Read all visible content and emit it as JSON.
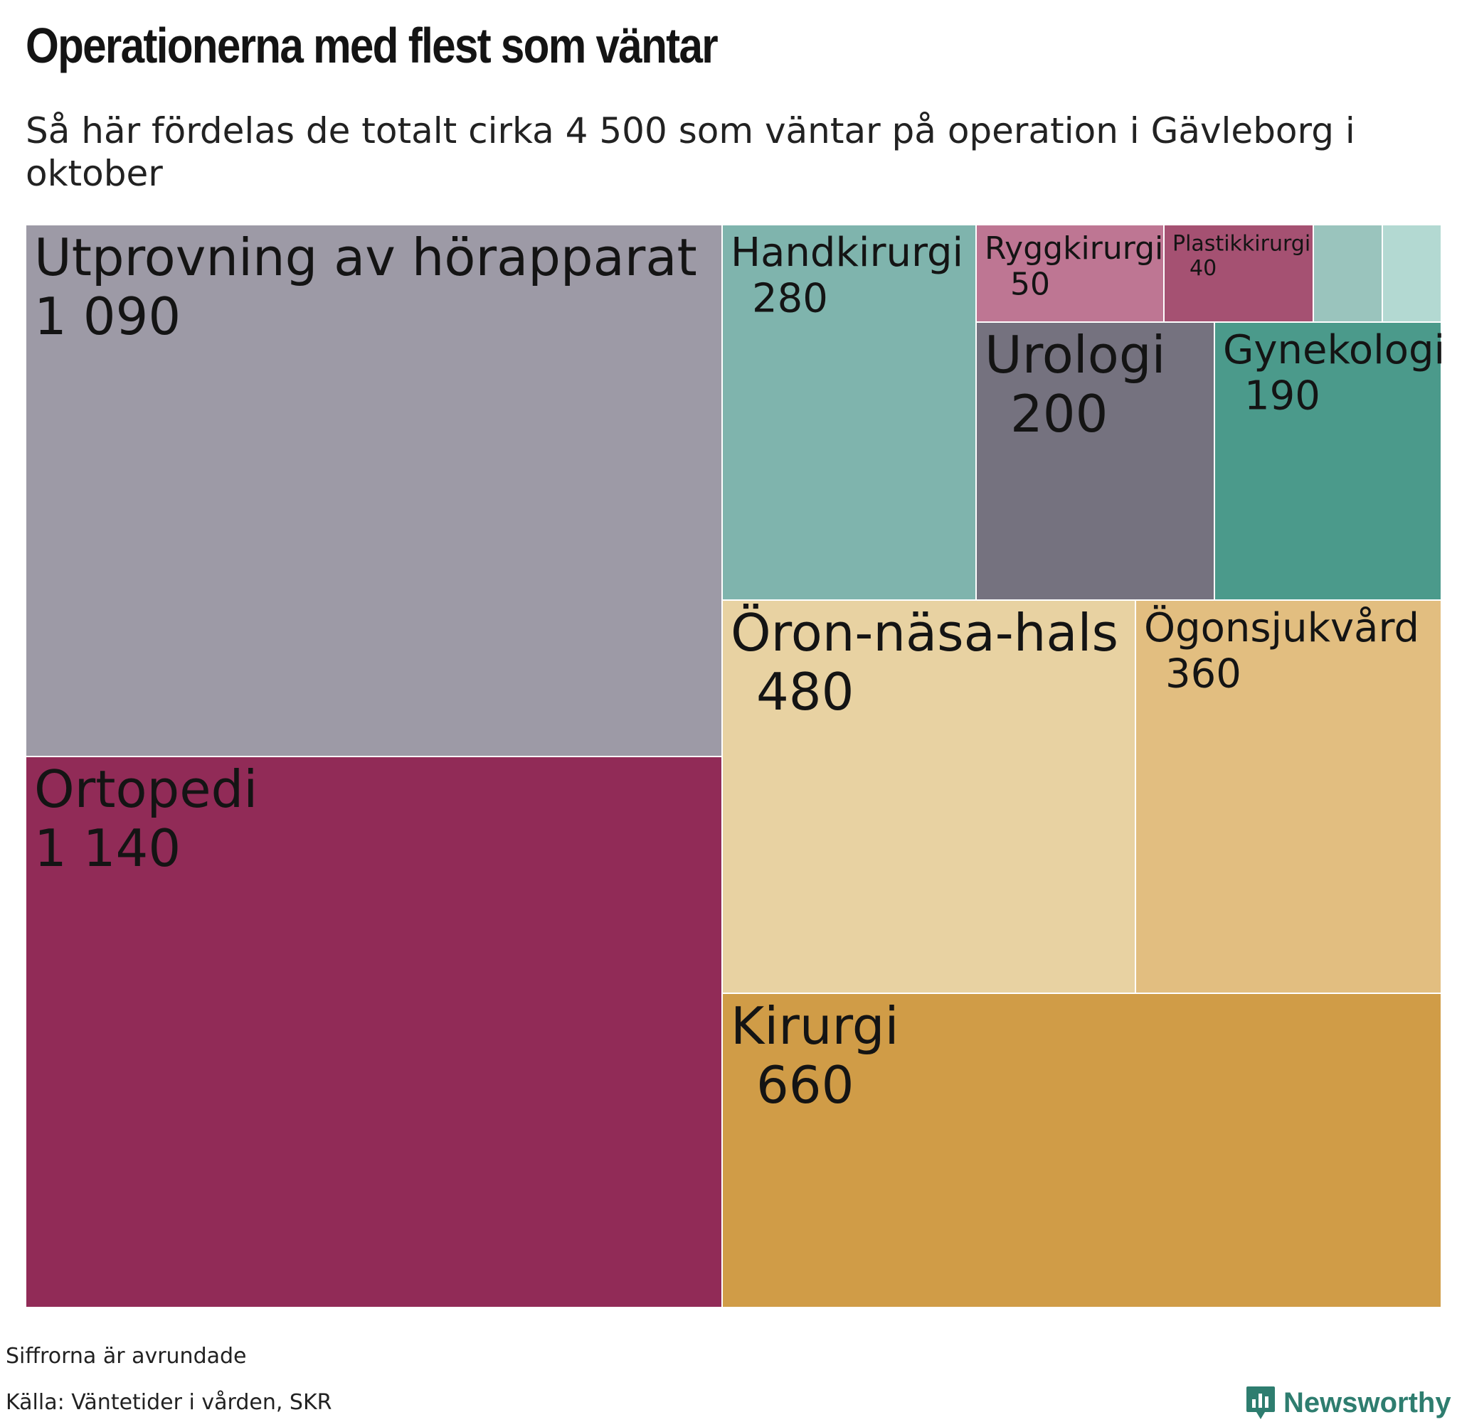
{
  "title": "Operationerna med flest som väntar",
  "subtitle": "Så här fördelas de totalt cirka 4 500 som väntar på operation i Gävleborg i oktober",
  "footnote": "Siffrorna är avrundade",
  "source": "Källa: Väntetider i vården, SKR",
  "brand": {
    "name": "Newsworthy",
    "icon": "newsworthy-logo-icon",
    "color": "#2e7d6f"
  },
  "chart_data": {
    "type": "treemap",
    "items": [
      {
        "name": "Utprovning av hörapparat",
        "value": 1090,
        "value_label": "1 090",
        "color": "#9d9aa6"
      },
      {
        "name": "Ortopedi",
        "value": 1140,
        "value_label": "1 140",
        "color": "#912b57"
      },
      {
        "name": "Handkirurgi",
        "value": 280,
        "value_label": "280",
        "color": "#7fb4ad"
      },
      {
        "name": "Ryggkirurgi",
        "value": 50,
        "value_label": "50",
        "color": "#be7693"
      },
      {
        "name": "Plastikkirurgi",
        "value": 40,
        "value_label": "40",
        "color": "#a55172"
      },
      {
        "name": "",
        "value": null,
        "value_label": "",
        "color": "#9ac4bd"
      },
      {
        "name": "",
        "value": null,
        "value_label": "",
        "color": "#b3d9d2"
      },
      {
        "name": "Urologi",
        "value": 200,
        "value_label": "200",
        "color": "#75727f"
      },
      {
        "name": "Gynekologi",
        "value": 190,
        "value_label": "190",
        "color": "#4b9a8b"
      },
      {
        "name": "Öron-näsa-hals",
        "value": 480,
        "value_label": "480",
        "color": "#e8d2a2"
      },
      {
        "name": "Ögonsjukvård",
        "value": 360,
        "value_label": "360",
        "color": "#e2be80"
      },
      {
        "name": "Kirurgi",
        "value": 660,
        "value_label": "660",
        "color": "#d09c47"
      }
    ]
  }
}
